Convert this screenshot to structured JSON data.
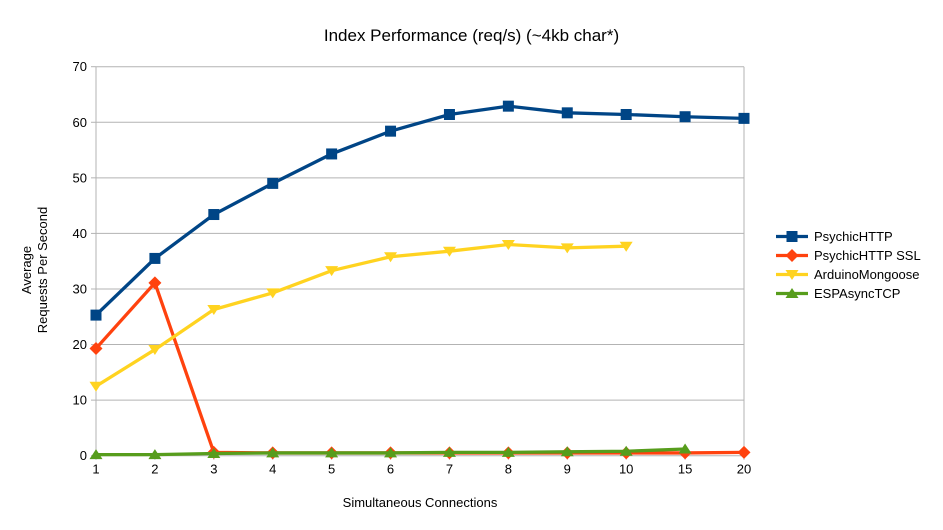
{
  "chart_data": {
    "type": "line",
    "title": "Index Performance (req/s) (~4kb char*)",
    "xlabel": "Simultaneous Connections",
    "ylabel_lines": [
      "Average",
      "Requests Per Second"
    ],
    "x_categories": [
      "1",
      "2",
      "3",
      "4",
      "5",
      "6",
      "7",
      "8",
      "9",
      "10",
      "15",
      "20"
    ],
    "y_ticks": [
      0,
      10,
      20,
      30,
      40,
      50,
      60,
      70
    ],
    "ylim": [
      0,
      70
    ],
    "grid": "horizontal",
    "legend_position": "right",
    "series": [
      {
        "name": "PsychicHTTP",
        "color": "#004586",
        "marker": "square",
        "values": [
          25.3,
          35.5,
          43.4,
          49.0,
          54.3,
          58.4,
          61.4,
          62.9,
          61.7,
          61.4,
          61.0,
          60.7
        ]
      },
      {
        "name": "PsychicHTTP SSL",
        "color": "#ff420e",
        "marker": "diamond",
        "values": [
          19.3,
          31.1,
          0.6,
          0.5,
          0.5,
          0.5,
          0.5,
          0.5,
          0.5,
          0.5,
          0.5,
          0.6
        ]
      },
      {
        "name": "ArduinoMongoose",
        "color": "#ffd320",
        "marker": "triangle-down",
        "values": [
          12.5,
          19.1,
          26.3,
          29.3,
          33.3,
          35.8,
          36.8,
          38.0,
          37.4,
          37.7,
          null,
          null
        ]
      },
      {
        "name": "ESPAsyncTCP",
        "color": "#579d1c",
        "marker": "triangle-up",
        "values": [
          0.2,
          0.2,
          0.4,
          0.5,
          0.5,
          0.5,
          0.6,
          0.6,
          0.7,
          0.8,
          1.2,
          null
        ]
      }
    ],
    "style": {
      "axis_color": "#b3b3b3",
      "text_color": "#000000",
      "background": "#ffffff"
    }
  }
}
